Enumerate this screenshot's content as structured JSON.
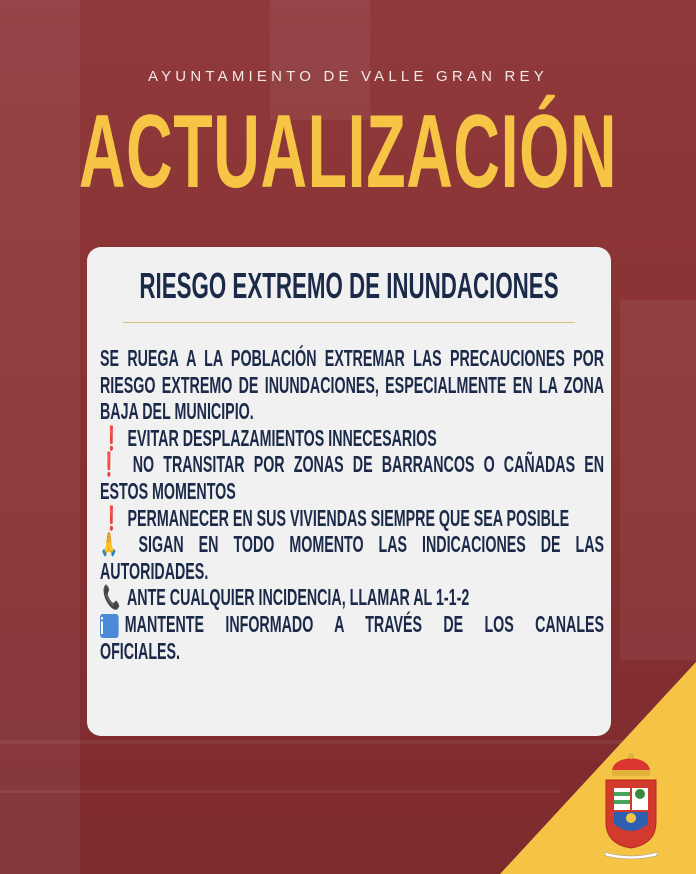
{
  "header": {
    "organization": "AYUNTAMIENTO DE VALLE GRAN REY",
    "headline": "ACTUALIZACIÓN"
  },
  "card": {
    "title": "RIESGO EXTREMO DE INUNDACIONES",
    "lines": [
      {
        "text": "SE RUEGA A LA POBLACIÓN EXTREMAR LAS PRECAUCIONES POR",
        "justify": true
      },
      {
        "text": "RIESGO EXTREMO DE INUNDACIONES, ESPECIALMENTE EN LA ZONA",
        "justify": true
      },
      {
        "text": "BAJA DEL MUNICIPIO.",
        "justify": false
      },
      {
        "icon": "exclamation-icon",
        "glyph": "❗",
        "text": "EVITAR DESPLAZAMIENTOS INNECESARIOS",
        "justify": false
      },
      {
        "icon": "exclamation-icon",
        "glyph": "❗",
        "text": "NO TRANSITAR POR ZONAS DE BARRANCOS O CAÑADAS EN",
        "justify": true
      },
      {
        "text": "ESTOS MOMENTOS",
        "justify": false
      },
      {
        "icon": "exclamation-icon",
        "glyph": "❗",
        "text": "PERMANECER EN SUS VIVIENDAS SIEMPRE QUE SEA POSIBLE",
        "justify": false
      },
      {
        "icon": "praying-hands-icon",
        "glyph": "🙏",
        "text": "SIGAN EN TODO MOMENTO LAS INDICACIONES DE LAS",
        "justify": true
      },
      {
        "text": "AUTORIDADES.",
        "justify": false
      },
      {
        "icon": "phone-icon",
        "glyph": "📞",
        "text": "ANTE CUALQUIER INCIDENCIA, LLAMAR AL 1-1-2",
        "justify": false
      },
      {
        "icon": "info-icon",
        "glyph": "i",
        "text": "MANTENTE INFORMADO A TRAVÉS DE LOS CANALES",
        "justify": true
      },
      {
        "text": "OFICIALES.",
        "justify": false
      }
    ]
  },
  "colors": {
    "background": "#8a3234",
    "accent": "#f7c545",
    "text": "#1c2a4a",
    "card": "#f1f1f2"
  },
  "logo": {
    "name": "coat-of-arms-valle-gran-rey"
  }
}
